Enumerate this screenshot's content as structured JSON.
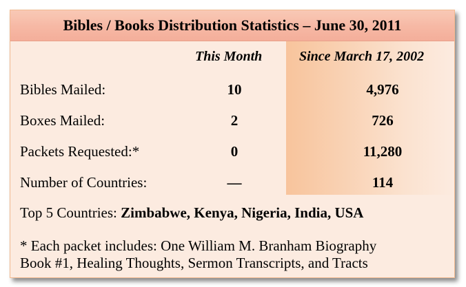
{
  "header": {
    "title": "Bibles / Books Distribution Statistics – June 30, 2011"
  },
  "columns": {
    "this_month": "This Month",
    "since": "Since March 17, 2002"
  },
  "rows": [
    {
      "label": "Bibles Mailed:",
      "this_month": "10",
      "since": "4,976"
    },
    {
      "label": "Boxes Mailed:",
      "this_month": "2",
      "since": "726"
    },
    {
      "label": "Packets Requested:*",
      "this_month": "0",
      "since": "11,280"
    },
    {
      "label": "Number of Countries:",
      "this_month": "—",
      "since": "114"
    }
  ],
  "top_countries": {
    "label": "Top 5 Countries:",
    "list": "Zimbabwe, Kenya, Nigeria, India, USA"
  },
  "footnote": {
    "line1": "* Each packet includes: One William M. Branham Biography",
    "line2": "Book #1, Healing Thoughts, Sermon Transcripts,  and Tracts"
  },
  "colors": {
    "card_background": "#fcebe0",
    "title_bar": "#f6b8a4",
    "since_column_accent": "#f8c49c"
  }
}
